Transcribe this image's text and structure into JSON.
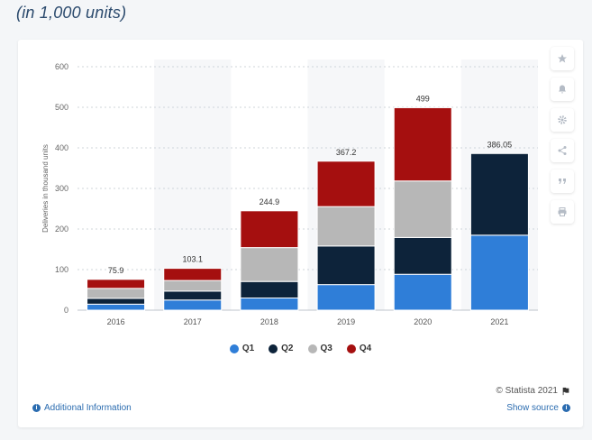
{
  "header": {
    "subtitle": "(in 1,000 units)"
  },
  "chart_data": {
    "type": "bar",
    "stacked": true,
    "categories": [
      "2016",
      "2017",
      "2018",
      "2019",
      "2020",
      "2021"
    ],
    "series": [
      {
        "name": "Q1",
        "color": "#2f7ed8",
        "values": [
          14.8,
          25.0,
          29.98,
          63.0,
          88.4,
          184.8
        ]
      },
      {
        "name": "Q2",
        "color": "#0d233a",
        "values": [
          14.4,
          22.0,
          40.7,
          95.2,
          90.7,
          201.25
        ]
      },
      {
        "name": "Q3",
        "color": "#b7b7b7",
        "values": [
          24.5,
          26.1,
          83.5,
          97.0,
          139.3,
          null
        ]
      },
      {
        "name": "Q4",
        "color": "#a50f0f",
        "values": [
          22.2,
          29.98,
          90.7,
          112.0,
          180.6,
          null
        ]
      }
    ],
    "totals": [
      "75.9",
      "103.1",
      "244.9",
      "367.2",
      "499",
      "386.05"
    ],
    "ylabel": "Deliveries in thousand units",
    "xlabel": "",
    "ylim": [
      0,
      600
    ],
    "yticks": [
      0,
      100,
      200,
      300,
      400,
      500,
      600
    ],
    "legend_position": "bottom-center",
    "grid": true
  },
  "legend": [
    {
      "label": "Q1",
      "color": "#2f7ed8"
    },
    {
      "label": "Q2",
      "color": "#0d233a"
    },
    {
      "label": "Q3",
      "color": "#b7b7b7"
    },
    {
      "label": "Q4",
      "color": "#a50f0f"
    }
  ],
  "footer": {
    "credit": "© Statista 2021",
    "additional_info": "Additional Information",
    "show_source": "Show source"
  },
  "tools": [
    "star-icon",
    "bell-icon",
    "gear-icon",
    "share-icon",
    "quote-icon",
    "print-icon"
  ]
}
